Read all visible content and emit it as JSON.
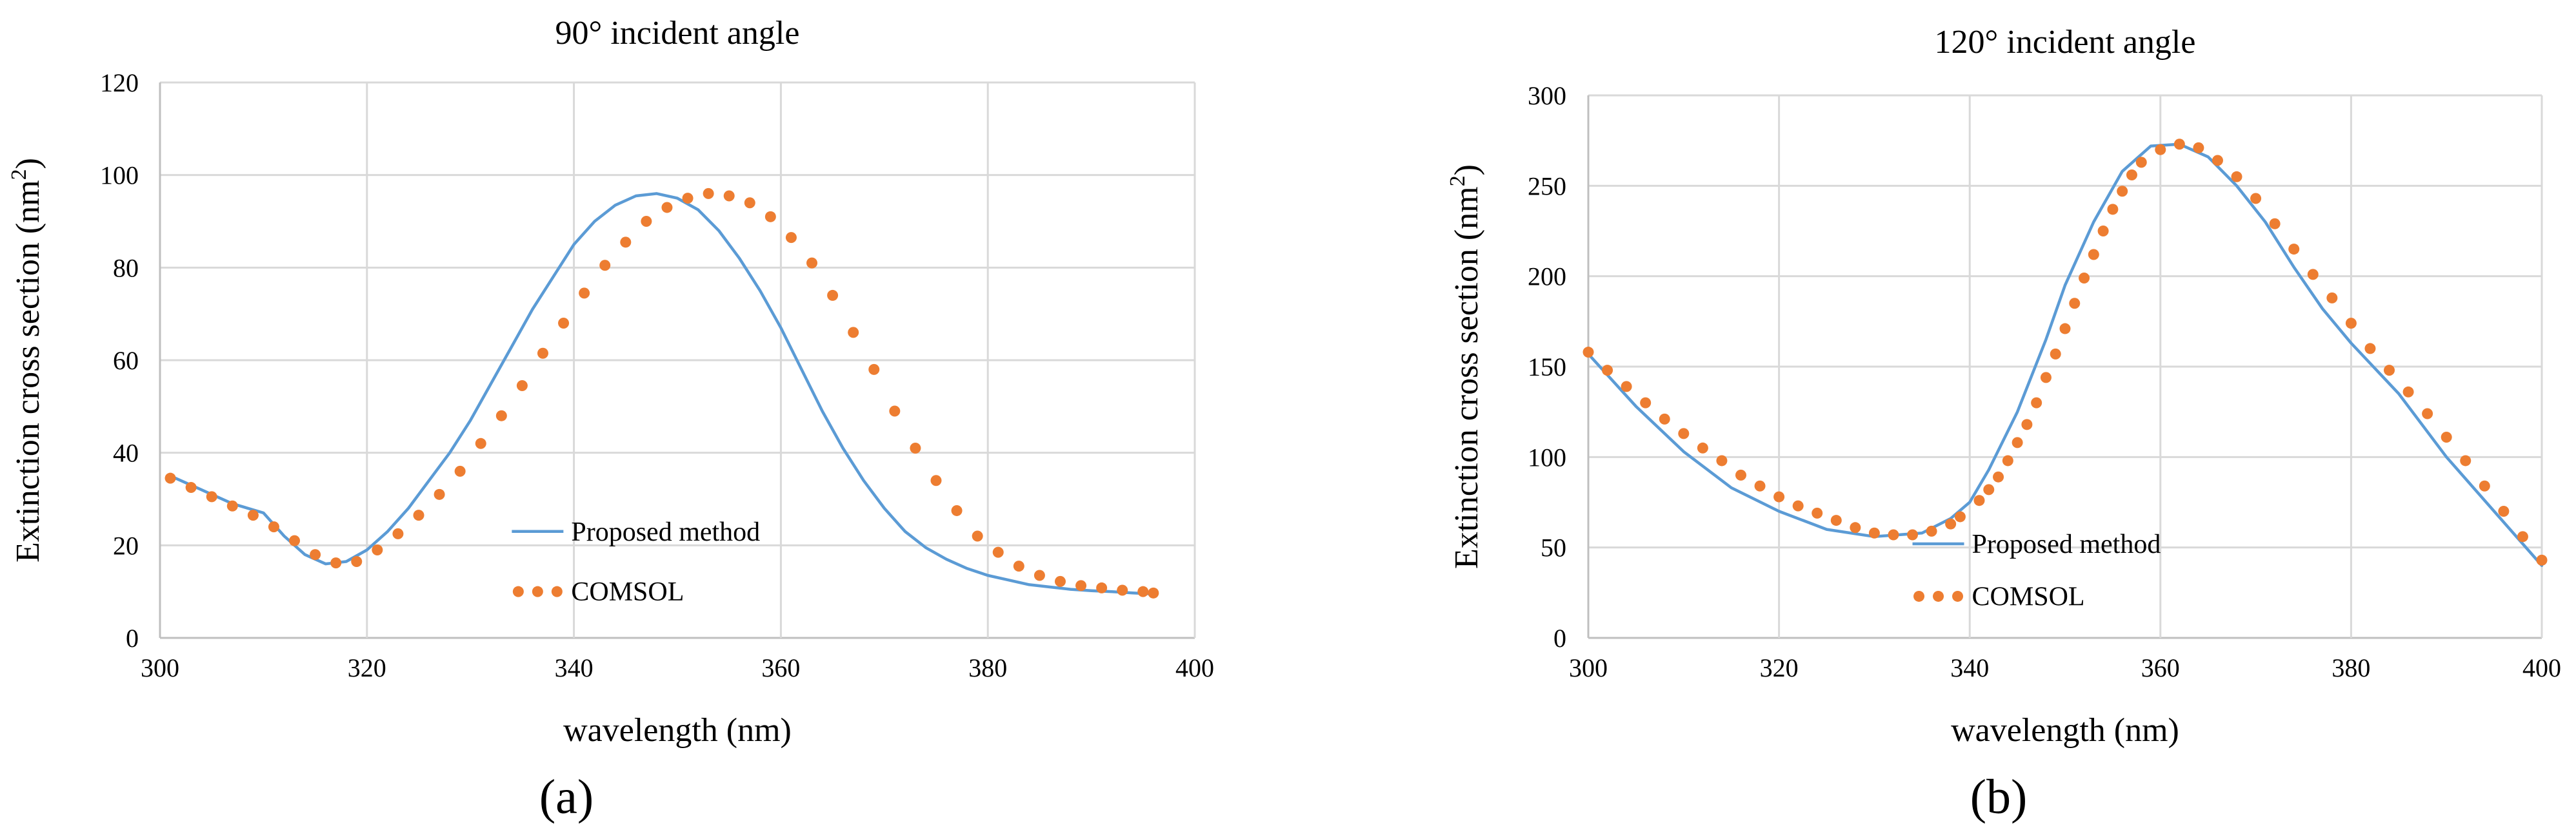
{
  "colors": {
    "line": "#5B9BD5",
    "dots": "#ED7D31",
    "grid": "#D9D9D9",
    "axis": "#BFBFBF"
  },
  "chart_data": [
    {
      "type": "line",
      "panel_label": "(a)",
      "title": "90° incident angle",
      "xlabel": "wavelength (nm)",
      "ylabel": "Extinction cross section (nm",
      "ylabel_sup": "2",
      "ylabel_close": ")",
      "xlim": [
        300,
        400
      ],
      "ylim": [
        0,
        120
      ],
      "xticks": [
        300,
        320,
        340,
        360,
        380,
        400
      ],
      "yticks": [
        0,
        20,
        40,
        60,
        80,
        100,
        120
      ],
      "grid": true,
      "legend_position": "lower-center inside",
      "series": [
        {
          "name": "Proposed method",
          "style": "solid-line",
          "x": [
            301,
            304,
            307,
            310,
            312,
            314,
            316,
            318,
            320,
            322,
            324,
            326,
            328,
            330,
            332,
            334,
            336,
            338,
            340,
            342,
            344,
            346,
            348,
            350,
            352,
            354,
            356,
            358,
            360,
            362,
            364,
            366,
            368,
            370,
            372,
            374,
            376,
            378,
            380,
            382,
            384,
            386,
            388,
            390,
            392,
            394,
            396
          ],
          "y": [
            35,
            32,
            29,
            27,
            22,
            18,
            16,
            16.5,
            19,
            23,
            28,
            34,
            40,
            47,
            55,
            63,
            71,
            78,
            85,
            90,
            93.5,
            95.5,
            96,
            95,
            92.5,
            88,
            82,
            75,
            67,
            58,
            49,
            41,
            34,
            28,
            23,
            19.5,
            17,
            15,
            13.5,
            12.5,
            11.5,
            11,
            10.5,
            10.2,
            10,
            9.7,
            9.5
          ]
        },
        {
          "name": "COMSOL",
          "style": "dots",
          "x": [
            301,
            303,
            305,
            307,
            309,
            311,
            313,
            315,
            317,
            319,
            321,
            323,
            325,
            327,
            329,
            331,
            333,
            335,
            337,
            339,
            341,
            343,
            345,
            347,
            349,
            351,
            353,
            355,
            357,
            359,
            361,
            363,
            365,
            367,
            369,
            371,
            373,
            375,
            377,
            379,
            381,
            383,
            385,
            387,
            389,
            391,
            393,
            395,
            396
          ],
          "y": [
            34.5,
            32.5,
            30.5,
            28.5,
            26.5,
            24,
            21,
            18,
            16.2,
            16.5,
            19,
            22.5,
            26.5,
            31,
            36,
            42,
            48,
            54.5,
            61.5,
            68,
            74.5,
            80.5,
            85.5,
            90,
            93,
            95,
            96,
            95.5,
            94,
            91,
            86.5,
            81,
            74,
            66,
            58,
            49,
            41,
            34,
            27.5,
            22,
            18.5,
            15.5,
            13.5,
            12.2,
            11.3,
            10.8,
            10.3,
            10,
            9.7
          ]
        }
      ]
    },
    {
      "type": "line",
      "panel_label": "(b)",
      "title": "120° incident angle",
      "xlabel": "wavelength (nm)",
      "ylabel": "Extinction cross section (nm",
      "ylabel_sup": "2",
      "ylabel_close": ")",
      "xlim": [
        300,
        400
      ],
      "ylim": [
        0,
        300
      ],
      "xticks": [
        300,
        320,
        340,
        360,
        380,
        400
      ],
      "yticks": [
        0,
        50,
        100,
        150,
        200,
        250,
        300
      ],
      "grid": true,
      "legend_position": "lower-center inside",
      "series": [
        {
          "name": "Proposed method",
          "style": "solid-line",
          "x": [
            300,
            305,
            310,
            315,
            320,
            325,
            330,
            335,
            338,
            340,
            342,
            345,
            348,
            350,
            353,
            356,
            359,
            362,
            365,
            368,
            371,
            374,
            377,
            380,
            385,
            390,
            395,
            400
          ],
          "y": [
            157,
            128,
            103,
            83,
            70,
            60,
            56,
            58,
            66,
            75,
            93,
            125,
            165,
            195,
            230,
            258,
            272,
            273,
            266,
            250,
            230,
            205,
            182,
            163,
            135,
            100,
            70,
            40
          ]
        },
        {
          "name": "COMSOL",
          "style": "dots",
          "x": [
            300,
            302,
            304,
            306,
            308,
            310,
            312,
            314,
            316,
            318,
            320,
            322,
            324,
            326,
            328,
            330,
            332,
            334,
            336,
            338,
            339,
            341,
            342,
            343,
            344,
            345,
            346,
            347,
            348,
            349,
            350,
            351,
            352,
            353,
            354,
            355,
            356,
            357,
            358,
            360,
            362,
            364,
            366,
            368,
            370,
            372,
            374,
            376,
            378,
            380,
            382,
            384,
            386,
            388,
            390,
            392,
            394,
            396,
            398,
            400
          ],
          "y": [
            158,
            148,
            139,
            130,
            121,
            113,
            105,
            98,
            90,
            84,
            78,
            73,
            69,
            65,
            61,
            58,
            57,
            57,
            59,
            63,
            67,
            76,
            82,
            89,
            98,
            108,
            118,
            130,
            144,
            157,
            171,
            185,
            199,
            212,
            225,
            237,
            247,
            256,
            263,
            270,
            273,
            271,
            264,
            255,
            243,
            229,
            215,
            201,
            188,
            174,
            160,
            148,
            136,
            124,
            111,
            98,
            84,
            70,
            56,
            43
          ]
        }
      ]
    }
  ]
}
